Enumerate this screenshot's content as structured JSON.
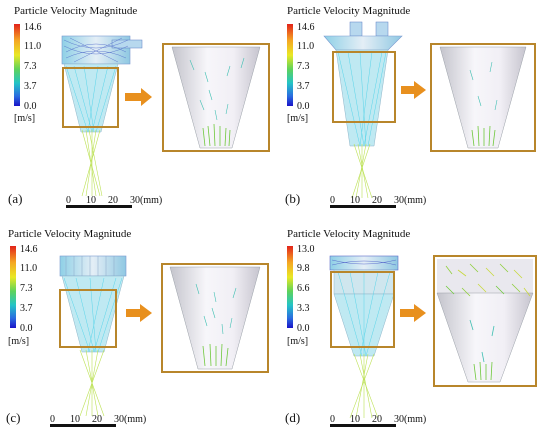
{
  "figure": {
    "panels": [
      {
        "id": "a",
        "label": "(a)",
        "colorbar": {
          "title": "Particle Velocity Magnitude",
          "ticks": [
            "14.6",
            "11.0",
            "7.3",
            "3.7",
            "0.0"
          ],
          "unit": "[m/s]"
        },
        "scalebar": {
          "ticks": [
            "0",
            "10",
            "20",
            "30(mm)"
          ]
        }
      },
      {
        "id": "b",
        "label": "(b)",
        "colorbar": {
          "title": "Particle Velocity Magnitude",
          "ticks": [
            "14.6",
            "11.0",
            "7.3",
            "3.7",
            "0.0"
          ],
          "unit": "[m/s]"
        },
        "scalebar": {
          "ticks": [
            "0",
            "10",
            "20",
            "30(mm)"
          ]
        }
      },
      {
        "id": "c",
        "label": "(c)",
        "colorbar": {
          "title": "Particle Velocity Magnitude",
          "ticks": [
            "14.6",
            "11.0",
            "7.3",
            "3.7",
            "0.0"
          ],
          "unit": "[m/s]"
        },
        "scalebar": {
          "ticks": [
            "0",
            "10",
            "20",
            "30(mm)"
          ]
        }
      },
      {
        "id": "d",
        "label": "(d)",
        "colorbar": {
          "title": "Particle Velocity Magnitude",
          "ticks": [
            "13.0",
            "9.8",
            "6.6",
            "3.3",
            "0.0"
          ],
          "unit": "[m/s]"
        },
        "scalebar": {
          "ticks": [
            "0",
            "10",
            "20",
            "30(mm)"
          ]
        }
      }
    ],
    "colors": {
      "highlight_box": "#b8862b",
      "arrow": "#e8901e",
      "nozzle": "#c9d4e4",
      "particle_cool": "#4fd2e8",
      "particle_warm": "#b8e04a"
    }
  }
}
